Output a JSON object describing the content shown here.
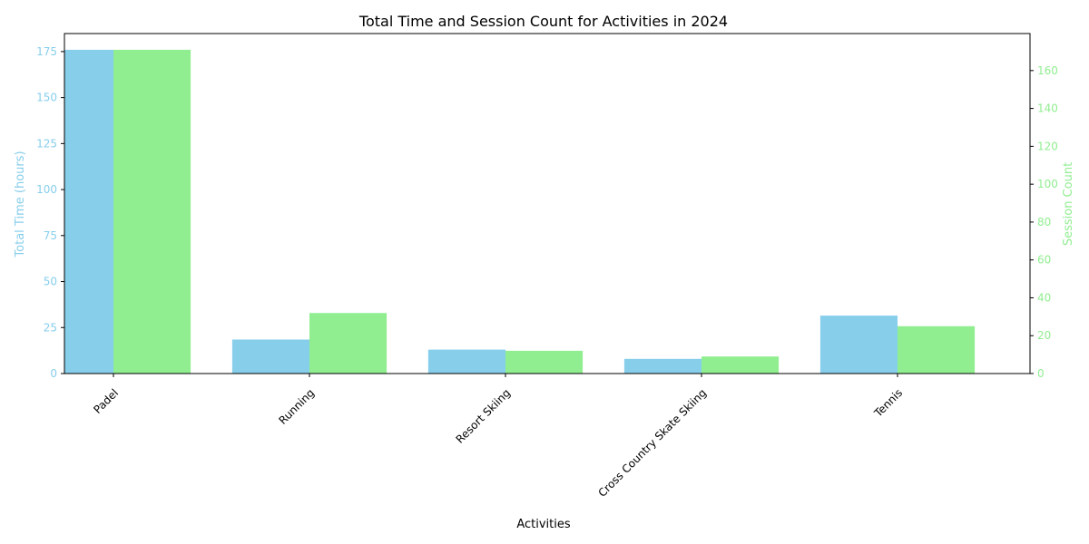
{
  "chart_data": {
    "type": "bar",
    "title": "Total Time and Session Count for Activities in 2024",
    "xlabel": "Activities",
    "categories": [
      "Padel",
      "Running",
      "Resort Skiing",
      "Cross Country Skate Skiing",
      "Tennis"
    ],
    "series": [
      {
        "name": "Total Time (hours)",
        "axis": "left",
        "color": "#87ceeb",
        "values": [
          176,
          18.5,
          13,
          8,
          31.5
        ]
      },
      {
        "name": "Session Count",
        "axis": "right",
        "color": "#90ee90",
        "values": [
          171,
          32,
          12,
          9,
          25
        ]
      }
    ],
    "y_left": {
      "label": "Total Time (hours)",
      "ticks": [
        0,
        25,
        50,
        75,
        100,
        125,
        150,
        175
      ],
      "ylim": [
        0,
        184.8
      ],
      "color": "#87ceeb"
    },
    "y_right": {
      "label": "Session Count",
      "ticks": [
        0,
        20,
        40,
        60,
        80,
        100,
        120,
        140,
        160
      ],
      "ylim": [
        0,
        179.55
      ],
      "color": "#90ee90"
    },
    "grid": false,
    "legend": "none"
  }
}
